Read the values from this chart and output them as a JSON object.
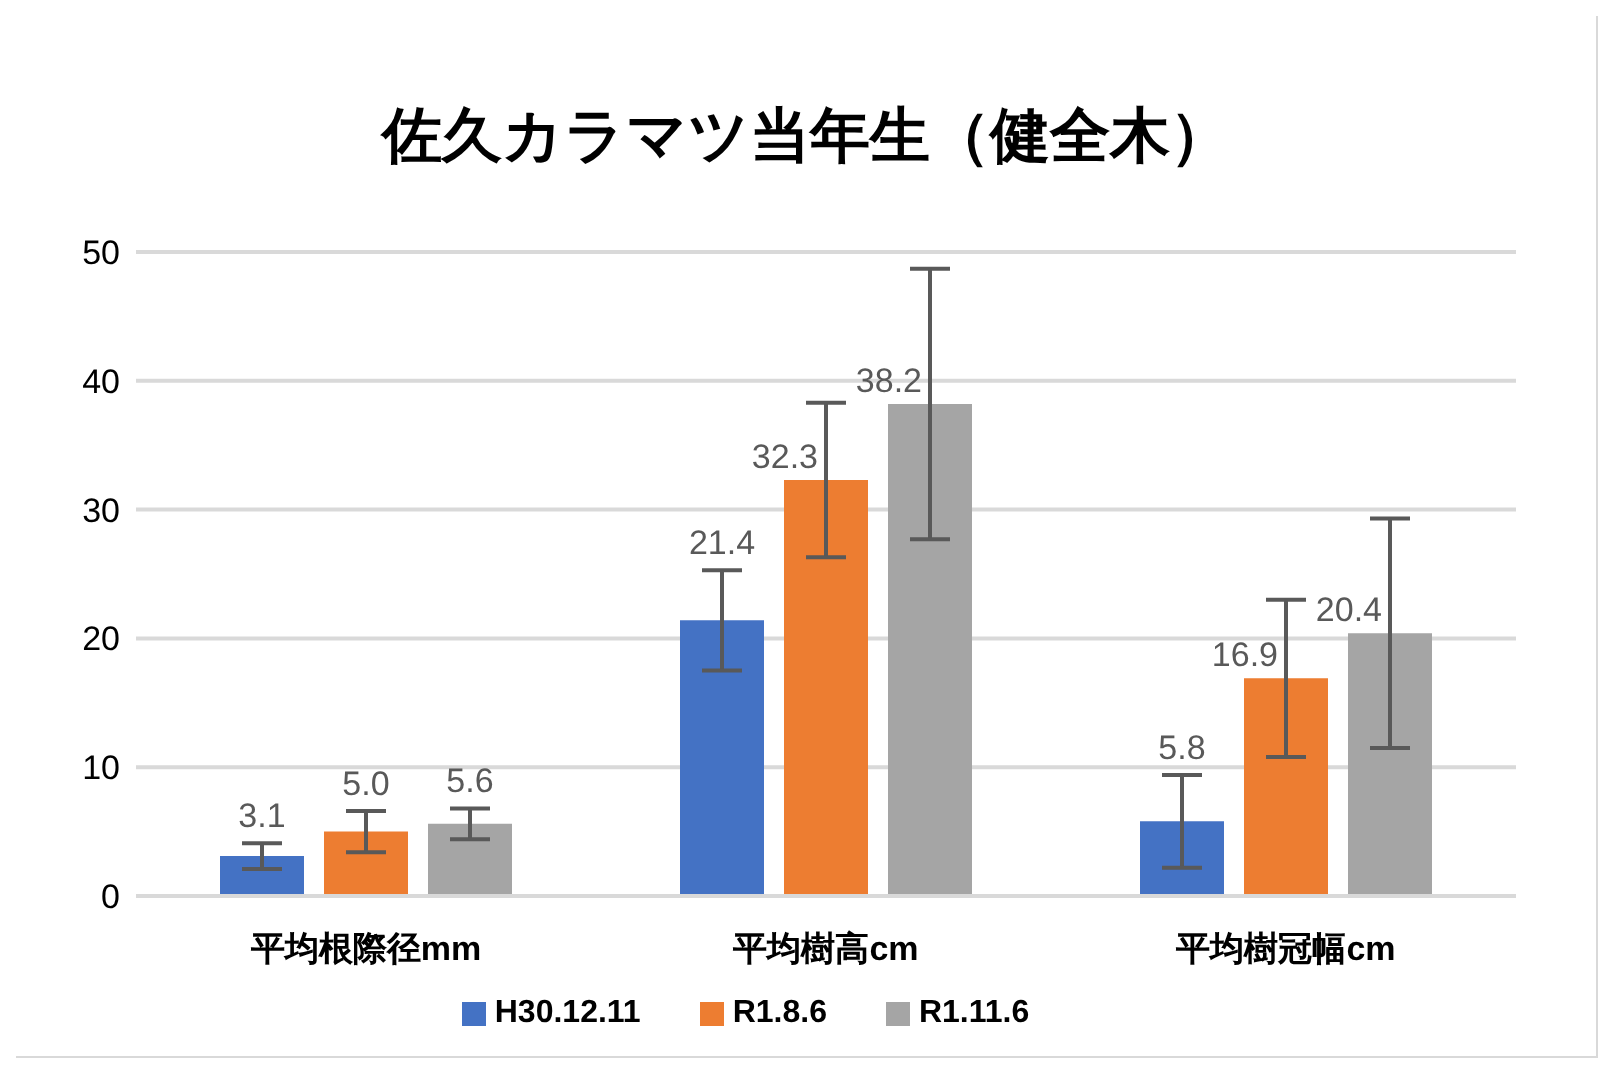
{
  "chart_data": {
    "type": "bar",
    "title": "佐久カラマツ当年生（健全木）",
    "categories": [
      "平均根際径mm",
      "平均樹高cm",
      "平均樹冠幅cm"
    ],
    "series": [
      {
        "name": "H30.12.11",
        "color": "#4472c4",
        "values": [
          3.1,
          21.4,
          5.8
        ],
        "value_labels": [
          "3.1",
          "21.4",
          "5.8"
        ],
        "errors": [
          1.0,
          3.9,
          3.6
        ]
      },
      {
        "name": "R1.8.6",
        "color": "#ed7d31",
        "values": [
          5.0,
          32.3,
          16.9
        ],
        "value_labels": [
          "5.0",
          "32.3",
          "16.9"
        ],
        "errors": [
          1.6,
          6.0,
          6.1
        ]
      },
      {
        "name": "R1.11.6",
        "color": "#a5a5a5",
        "values": [
          5.6,
          38.2,
          20.4
        ],
        "value_labels": [
          "5.6",
          "38.2",
          "20.4"
        ],
        "errors": [
          1.2,
          10.5,
          8.9
        ]
      }
    ],
    "ylim": [
      0,
      50
    ],
    "yticks": [
      0,
      10,
      20,
      30,
      40,
      50
    ],
    "grid": "y",
    "legend": "bottom"
  }
}
